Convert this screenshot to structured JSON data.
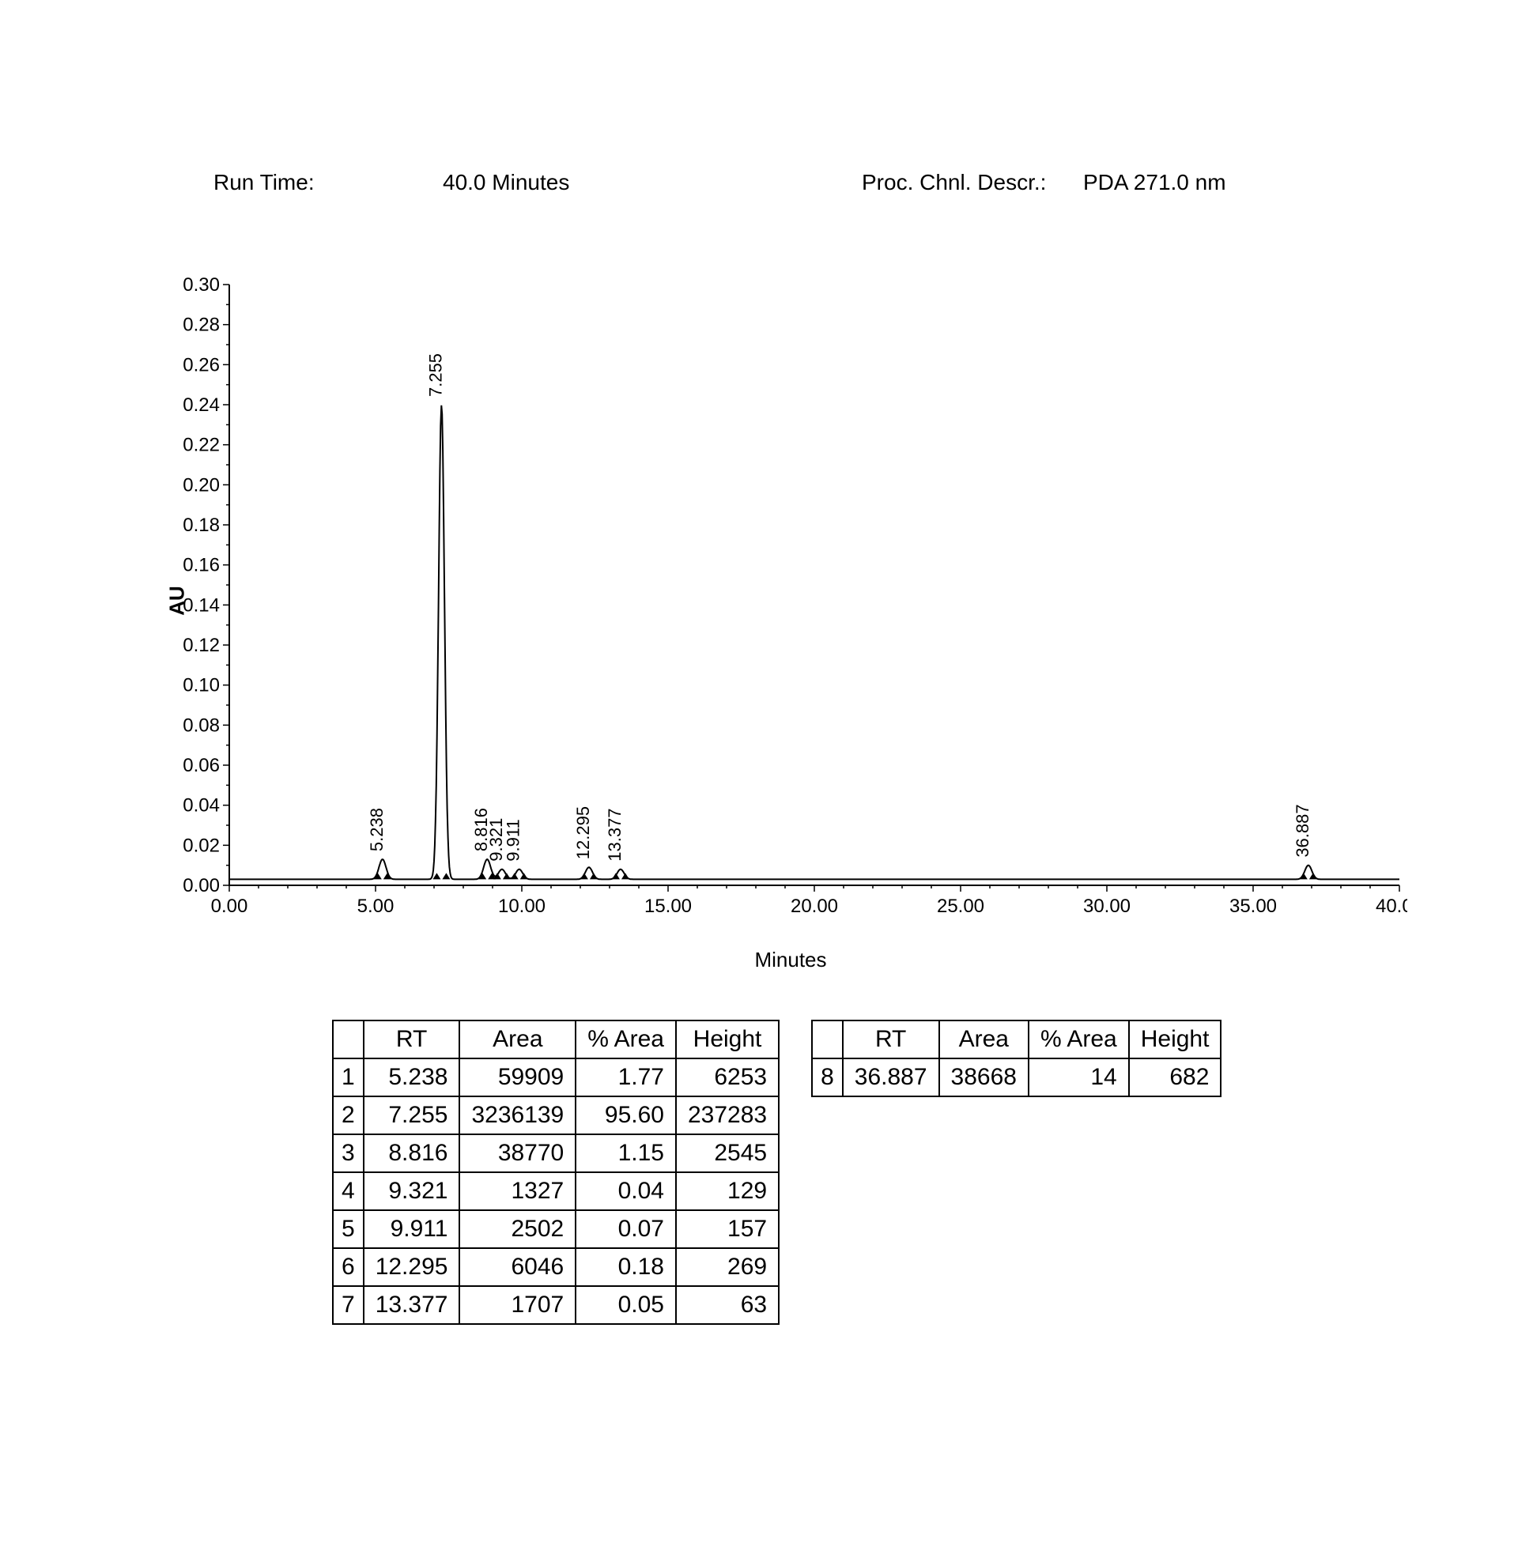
{
  "meta": {
    "run_time_label": "Run Time:",
    "run_time_value": "40.0 Minutes",
    "proc_label": "Proc. Chnl. Descr.:",
    "proc_value": "PDA 271.0 nm"
  },
  "chart": {
    "type": "line",
    "ylabel": "AU",
    "xlabel": "Minutes",
    "xlim": [
      0,
      40
    ],
    "ylim": [
      0,
      0.3
    ],
    "xtick_step": 5,
    "xtick_decimals": 2,
    "ytick_step": 0.02,
    "ytick_decimals": 2,
    "background_color": "#ffffff",
    "axis_color": "#000000",
    "trace_color": "#000000",
    "trace_width": 2,
    "baseline_au": 0.003,
    "peaks": [
      {
        "rt": 5.238,
        "height_au": 0.01,
        "label": "5.238"
      },
      {
        "rt": 7.255,
        "height_au": 0.237,
        "label": "7.255"
      },
      {
        "rt": 8.816,
        "height_au": 0.01,
        "label": "8.816"
      },
      {
        "rt": 9.321,
        "height_au": 0.005,
        "label": "9.321"
      },
      {
        "rt": 9.911,
        "height_au": 0.005,
        "label": "9.911"
      },
      {
        "rt": 12.295,
        "height_au": 0.006,
        "label": "12.295"
      },
      {
        "rt": 13.377,
        "height_au": 0.005,
        "label": "13.377"
      },
      {
        "rt": 36.887,
        "height_au": 0.007,
        "label": "36.887"
      }
    ]
  },
  "table1": {
    "columns": [
      "",
      "RT",
      "Area",
      "% Area",
      "Height"
    ],
    "rows": [
      [
        "1",
        "5.238",
        "59909",
        "1.77",
        "6253"
      ],
      [
        "2",
        "7.255",
        "3236139",
        "95.60",
        "237283"
      ],
      [
        "3",
        "8.816",
        "38770",
        "1.15",
        "2545"
      ],
      [
        "4",
        "9.321",
        "1327",
        "0.04",
        "129"
      ],
      [
        "5",
        "9.911",
        "2502",
        "0.07",
        "157"
      ],
      [
        "6",
        "12.295",
        "6046",
        "0.18",
        "269"
      ],
      [
        "7",
        "13.377",
        "1707",
        "0.05",
        "63"
      ]
    ]
  },
  "table2": {
    "columns": [
      "",
      "RT",
      "Area",
      "% Area",
      "Height"
    ],
    "rows": [
      [
        "8",
        "36.887",
        "38668",
        "14",
        "682"
      ]
    ]
  }
}
